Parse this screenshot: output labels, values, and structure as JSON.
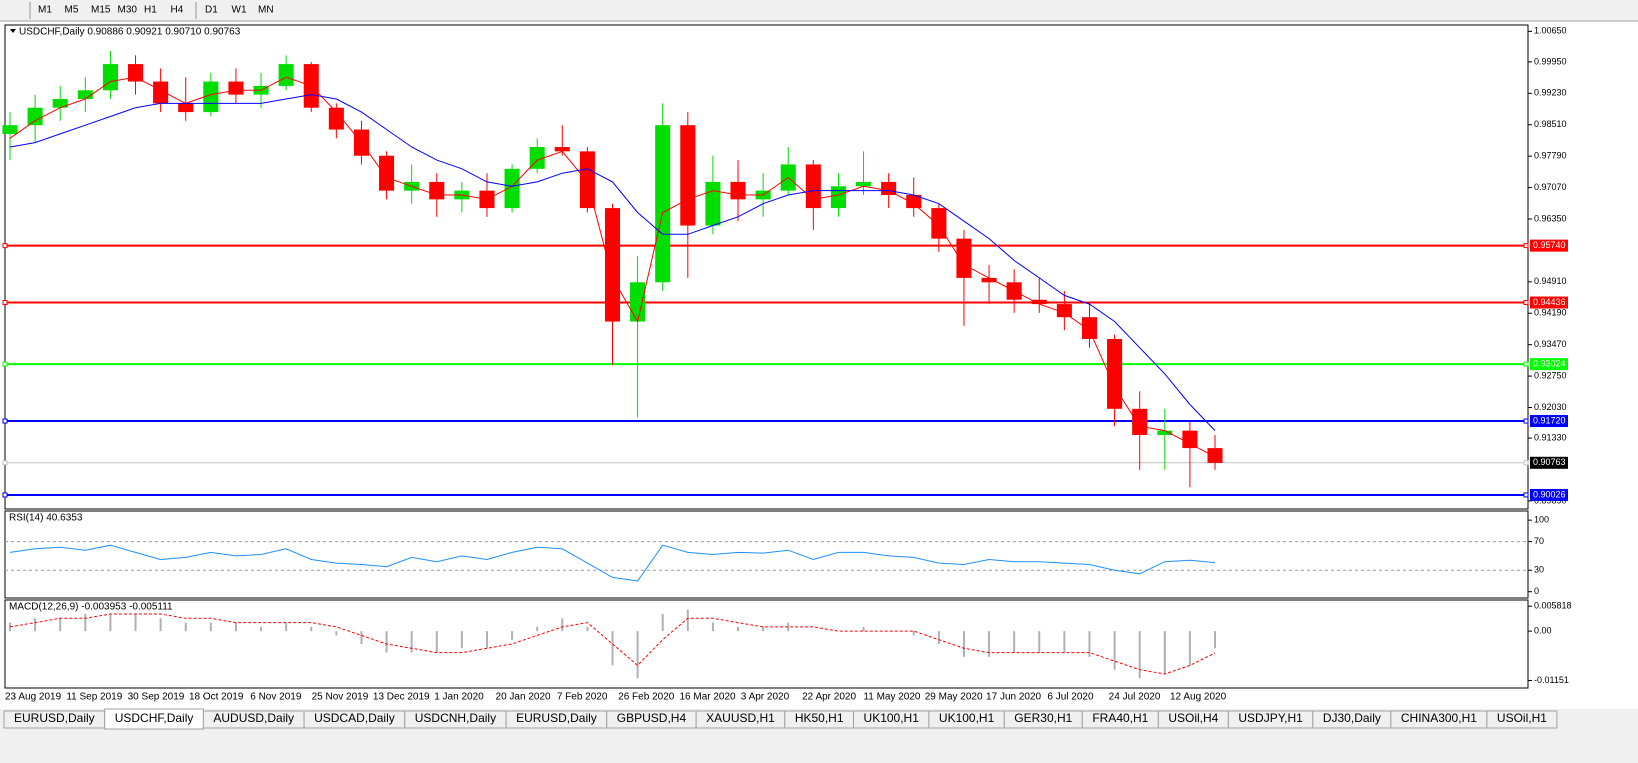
{
  "toolbar": {
    "timeframes": [
      "M1",
      "M5",
      "M15",
      "M30",
      "H1",
      "H4",
      "D1",
      "W1",
      "MN"
    ]
  },
  "tabs": [
    "EURUSD,Daily",
    "USDCHF,Daily",
    "AUDUSD,Daily",
    "USDCAD,Daily",
    "USDCNH,Daily",
    "EURUSD,Daily",
    "GBPUSD,H4",
    "XAUUSD,H1",
    "HK50,H1",
    "UK100,H1",
    "UK100,H1",
    "GER30,H1",
    "FRA40,H1",
    "USOil,H4",
    "USDJPY,H1",
    "DJ30,Daily",
    "CHINA300,H1",
    "USOil,H1"
  ],
  "active_tab": 1,
  "chart_data": [
    {
      "type": "candlestick",
      "title": "USDCHF,Daily  0.90886 0.90921 0.90710 0.90763",
      "up_color": "#00dd00",
      "down_color": "#ff0000",
      "open": [
        0.983,
        0.985,
        0.989,
        0.991,
        0.993,
        0.999,
        0.995,
        0.99,
        0.988,
        0.995,
        0.992,
        0.994,
        0.999,
        0.989,
        0.984,
        0.978,
        0.97,
        0.972,
        0.968,
        0.97,
        0.966,
        0.975,
        0.98,
        0.979,
        0.966,
        0.94,
        0.949,
        0.985,
        0.962,
        0.972,
        0.968,
        0.97,
        0.976,
        0.966,
        0.971,
        0.972,
        0.969,
        0.966,
        0.959,
        0.95,
        0.949,
        0.945,
        0.944,
        0.941,
        0.936,
        0.92,
        0.914,
        0.915,
        0.911
      ],
      "high": [
        0.988,
        0.992,
        0.994,
        0.996,
        1.002,
        1.001,
        0.998,
        0.996,
        0.997,
        0.998,
        0.997,
        1.001,
        0.9995,
        0.99,
        0.986,
        0.979,
        0.976,
        0.974,
        0.972,
        0.974,
        0.976,
        0.982,
        0.985,
        0.98,
        0.967,
        0.955,
        0.99,
        0.988,
        0.978,
        0.977,
        0.974,
        0.98,
        0.977,
        0.974,
        0.979,
        0.974,
        0.973,
        0.967,
        0.961,
        0.953,
        0.952,
        0.95,
        0.947,
        0.944,
        0.937,
        0.924,
        0.92,
        0.917,
        0.914
      ],
      "low": [
        0.977,
        0.981,
        0.986,
        0.988,
        0.991,
        0.992,
        0.988,
        0.986,
        0.987,
        0.99,
        0.989,
        0.993,
        0.988,
        0.982,
        0.976,
        0.968,
        0.967,
        0.964,
        0.965,
        0.964,
        0.965,
        0.974,
        0.978,
        0.965,
        0.93,
        0.918,
        0.947,
        0.95,
        0.96,
        0.963,
        0.964,
        0.969,
        0.961,
        0.964,
        0.969,
        0.966,
        0.964,
        0.956,
        0.939,
        0.944,
        0.942,
        0.942,
        0.938,
        0.934,
        0.916,
        0.906,
        0.906,
        0.902,
        0.906
      ],
      "close": [
        0.985,
        0.989,
        0.991,
        0.993,
        0.999,
        0.995,
        0.99,
        0.988,
        0.995,
        0.992,
        0.994,
        0.999,
        0.989,
        0.984,
        0.978,
        0.97,
        0.972,
        0.968,
        0.97,
        0.966,
        0.975,
        0.98,
        0.979,
        0.966,
        0.94,
        0.949,
        0.985,
        0.962,
        0.972,
        0.968,
        0.97,
        0.976,
        0.966,
        0.971,
        0.972,
        0.969,
        0.966,
        0.959,
        0.95,
        0.949,
        0.945,
        0.944,
        0.941,
        0.936,
        0.92,
        0.914,
        0.915,
        0.911,
        0.9076
      ],
      "series": [
        {
          "color": "#ff0000",
          "values": [
            0.982,
            0.986,
            0.989,
            0.991,
            0.995,
            0.996,
            0.993,
            0.99,
            0.992,
            0.993,
            0.993,
            0.996,
            0.994,
            0.988,
            0.981,
            0.973,
            0.971,
            0.969,
            0.969,
            0.968,
            0.971,
            0.977,
            0.979,
            0.972,
            0.95,
            0.94,
            0.965,
            0.968,
            0.97,
            0.969,
            0.969,
            0.973,
            0.968,
            0.969,
            0.971,
            0.97,
            0.967,
            0.962,
            0.953,
            0.95,
            0.947,
            0.944,
            0.942,
            0.938,
            0.925,
            0.916,
            0.915,
            0.912,
            0.909
          ]
        },
        {
          "color": "#0000ff",
          "values": [
            0.98,
            0.981,
            0.983,
            0.985,
            0.987,
            0.989,
            0.99,
            0.99,
            0.99,
            0.99,
            0.99,
            0.991,
            0.992,
            0.991,
            0.988,
            0.984,
            0.98,
            0.977,
            0.975,
            0.972,
            0.971,
            0.972,
            0.974,
            0.975,
            0.972,
            0.965,
            0.96,
            0.96,
            0.962,
            0.964,
            0.967,
            0.969,
            0.97,
            0.97,
            0.97,
            0.97,
            0.969,
            0.967,
            0.963,
            0.959,
            0.954,
            0.95,
            0.946,
            0.944,
            0.94,
            0.934,
            0.928,
            0.921,
            0.915
          ]
        }
      ],
      "ylim": [
        0.8975,
        1.0075
      ],
      "yticks": [
        {
          "value": 1.0065,
          "label": "1.00650"
        },
        {
          "value": 0.9995,
          "label": "0.99950"
        },
        {
          "value": 0.9923,
          "label": "0.99230"
        },
        {
          "value": 0.9851,
          "label": "0.98510"
        },
        {
          "value": 0.9779,
          "label": "0.97790"
        },
        {
          "value": 0.9707,
          "label": "0.97070"
        },
        {
          "value": 0.9635,
          "label": "0.96350"
        },
        {
          "value": 0.9491,
          "label": "0.94910"
        },
        {
          "value": 0.9419,
          "label": "0.94190"
        },
        {
          "value": 0.9347,
          "label": "0.93470"
        },
        {
          "value": 0.9275,
          "label": "0.92750"
        },
        {
          "value": 0.9203,
          "label": "0.92030"
        },
        {
          "value": 0.9133,
          "label": "0.91330"
        },
        {
          "value": 0.8989,
          "label": "0.89890"
        }
      ],
      "levels": [
        {
          "value": 0.9574,
          "label": "0.95740",
          "color": "#ff0000"
        },
        {
          "value": 0.94436,
          "label": "0.94436",
          "color": "#ff0000"
        },
        {
          "value": 0.93024,
          "label": "0.93024",
          "color": "#00ff00"
        },
        {
          "value": 0.9172,
          "label": "0.91720",
          "color": "#0000ff"
        },
        {
          "value": 0.90026,
          "label": "0.90026",
          "color": "#0000ff"
        }
      ],
      "current": {
        "value": 0.90763,
        "label": "0.90763",
        "color": "#c0c0c0"
      },
      "x_labels": [
        "23 Aug 2019",
        "11 Sep 2019",
        "30 Sep 2019",
        "18 Oct 2019",
        "6 Nov 2019",
        "25 Nov 2019",
        "13 Dec 2019",
        "1 Jan 2020",
        "20 Jan 2020",
        "7 Feb 2020",
        "26 Feb 2020",
        "16 Mar 2020",
        "3 Apr 2020",
        "22 Apr 2020",
        "11 May 2020",
        "29 May 2020",
        "17 Jun 2020",
        "6 Jul 2020",
        "24 Jul 2020",
        "12 Aug 2020"
      ]
    },
    {
      "type": "line",
      "title": "RSI(14) 40.6353",
      "color": "#1e90ff",
      "values": [
        55,
        60,
        62,
        58,
        65,
        55,
        45,
        48,
        55,
        50,
        52,
        60,
        45,
        40,
        38,
        35,
        48,
        42,
        50,
        45,
        55,
        62,
        60,
        40,
        20,
        15,
        65,
        55,
        52,
        55,
        54,
        58,
        45,
        55,
        55,
        50,
        48,
        40,
        38,
        45,
        42,
        42,
        40,
        38,
        30,
        25,
        42,
        44,
        40.6353
      ],
      "ylim": [
        -6,
        110
      ],
      "yticks": [
        100,
        70,
        30,
        0
      ]
    },
    {
      "type": "macd",
      "title": "MACD(12,26,9) -0.003953 -0.005111",
      "hist_color": "#b0b0b0",
      "signal_color": "#ff0000",
      "hist": [
        0.002,
        0.003,
        0.003,
        0.004,
        0.004,
        0.004,
        0.003,
        0.002,
        0.002,
        0.002,
        0.001,
        0.002,
        0.001,
        -0.001,
        -0.003,
        -0.005,
        -0.005,
        -0.005,
        -0.004,
        -0.004,
        -0.002,
        0.001,
        0.003,
        0.001,
        -0.008,
        -0.011,
        0.004,
        0.005,
        0.002,
        0.001,
        0.001,
        0.002,
        0,
        0,
        0.001,
        0,
        -0.001,
        -0.003,
        -0.006,
        -0.006,
        -0.005,
        -0.005,
        -0.005,
        -0.006,
        -0.009,
        -0.011,
        -0.01,
        -0.008,
        -0.004
      ],
      "signal": [
        0.001,
        0.002,
        0.003,
        0.003,
        0.004,
        0.004,
        0.004,
        0.003,
        0.003,
        0.002,
        0.002,
        0.002,
        0.002,
        0.001,
        -0.001,
        -0.003,
        -0.004,
        -0.005,
        -0.005,
        -0.004,
        -0.003,
        -0.001,
        0.001,
        0.002,
        -0.003,
        -0.008,
        -0.002,
        0.003,
        0.003,
        0.002,
        0.001,
        0.001,
        0.001,
        0,
        0,
        0,
        0,
        -0.002,
        -0.004,
        -0.005,
        -0.005,
        -0.005,
        -0.005,
        -0.005,
        -0.007,
        -0.009,
        -0.01,
        -0.008,
        -0.0051
      ],
      "ylim": [
        -0.0128,
        0.0068
      ],
      "yticks": [
        {
          "value": 0.005818,
          "label": "0.005818"
        },
        {
          "value": 0,
          "label": "0.00"
        },
        {
          "value": -0.01151,
          "label": "-0.01151"
        }
      ]
    }
  ]
}
